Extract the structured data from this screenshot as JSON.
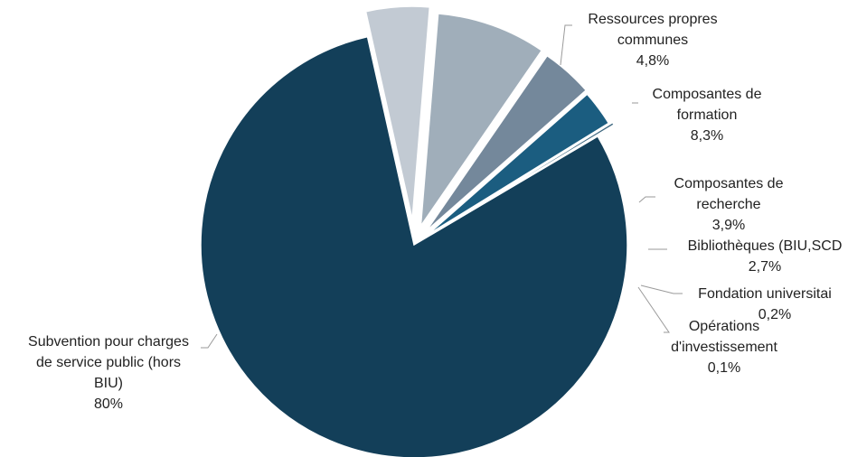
{
  "chart_data": {
    "type": "pie",
    "exploded": true,
    "start_angle_deg": 59.4,
    "slices": [
      {
        "name": "Subvention pour charges de service public (hors BIU)",
        "label_lines": [
          "Subvention pour charges",
          "de service public (hors",
          "BIU)"
        ],
        "pct_label": "80%",
        "value": 80.0,
        "color": "#133f59"
      },
      {
        "name": "Ressources propres communes",
        "label_lines": [
          "Ressources propres",
          "communes"
        ],
        "pct_label": "4,8%",
        "value": 4.8,
        "color": "#c2cad3"
      },
      {
        "name": "Composantes de formation",
        "label_lines": [
          "Composantes de",
          "formation"
        ],
        "pct_label": "8,3%",
        "value": 8.3,
        "color": "#a0aeba"
      },
      {
        "name": "Composantes de recherche",
        "label_lines": [
          "Composantes de",
          "recherche"
        ],
        "pct_label": "3,9%",
        "value": 3.9,
        "color": "#74889b"
      },
      {
        "name": "Bibliothèques (BIU,SCD)",
        "label_lines": [
          "Bibliothèques (BIU,SCD"
        ],
        "pct_label": "2,7%",
        "value": 2.7,
        "color": "#1b5d80"
      },
      {
        "name": "Fondation universitaire",
        "label_lines": [
          "Fondation universitai"
        ],
        "pct_label": "0,2%",
        "value": 0.2,
        "color": "#3f6880"
      },
      {
        "name": "Opérations d'investissement",
        "label_lines": [
          "Opérations",
          "d'investissement"
        ],
        "pct_label": "0,1%",
        "value": 0.1,
        "color": "#2a4f66"
      }
    ]
  }
}
